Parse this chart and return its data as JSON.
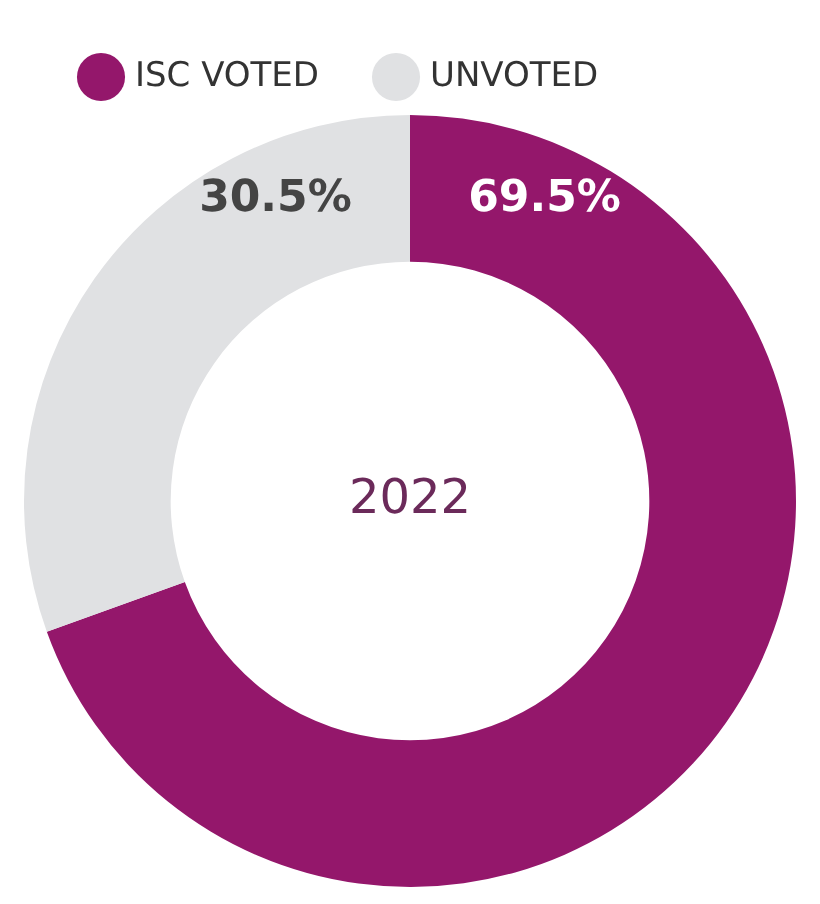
{
  "chart_data": {
    "type": "donut",
    "categories": [
      "ISC VOTED",
      "UNVOTED"
    ],
    "values": [
      69.5,
      30.5
    ],
    "value_labels": [
      "69.5%",
      "30.5%"
    ],
    "colors": [
      "#94176b",
      "#e0e1e3"
    ],
    "annotations": [
      "2022"
    ],
    "legend": "top left"
  }
}
